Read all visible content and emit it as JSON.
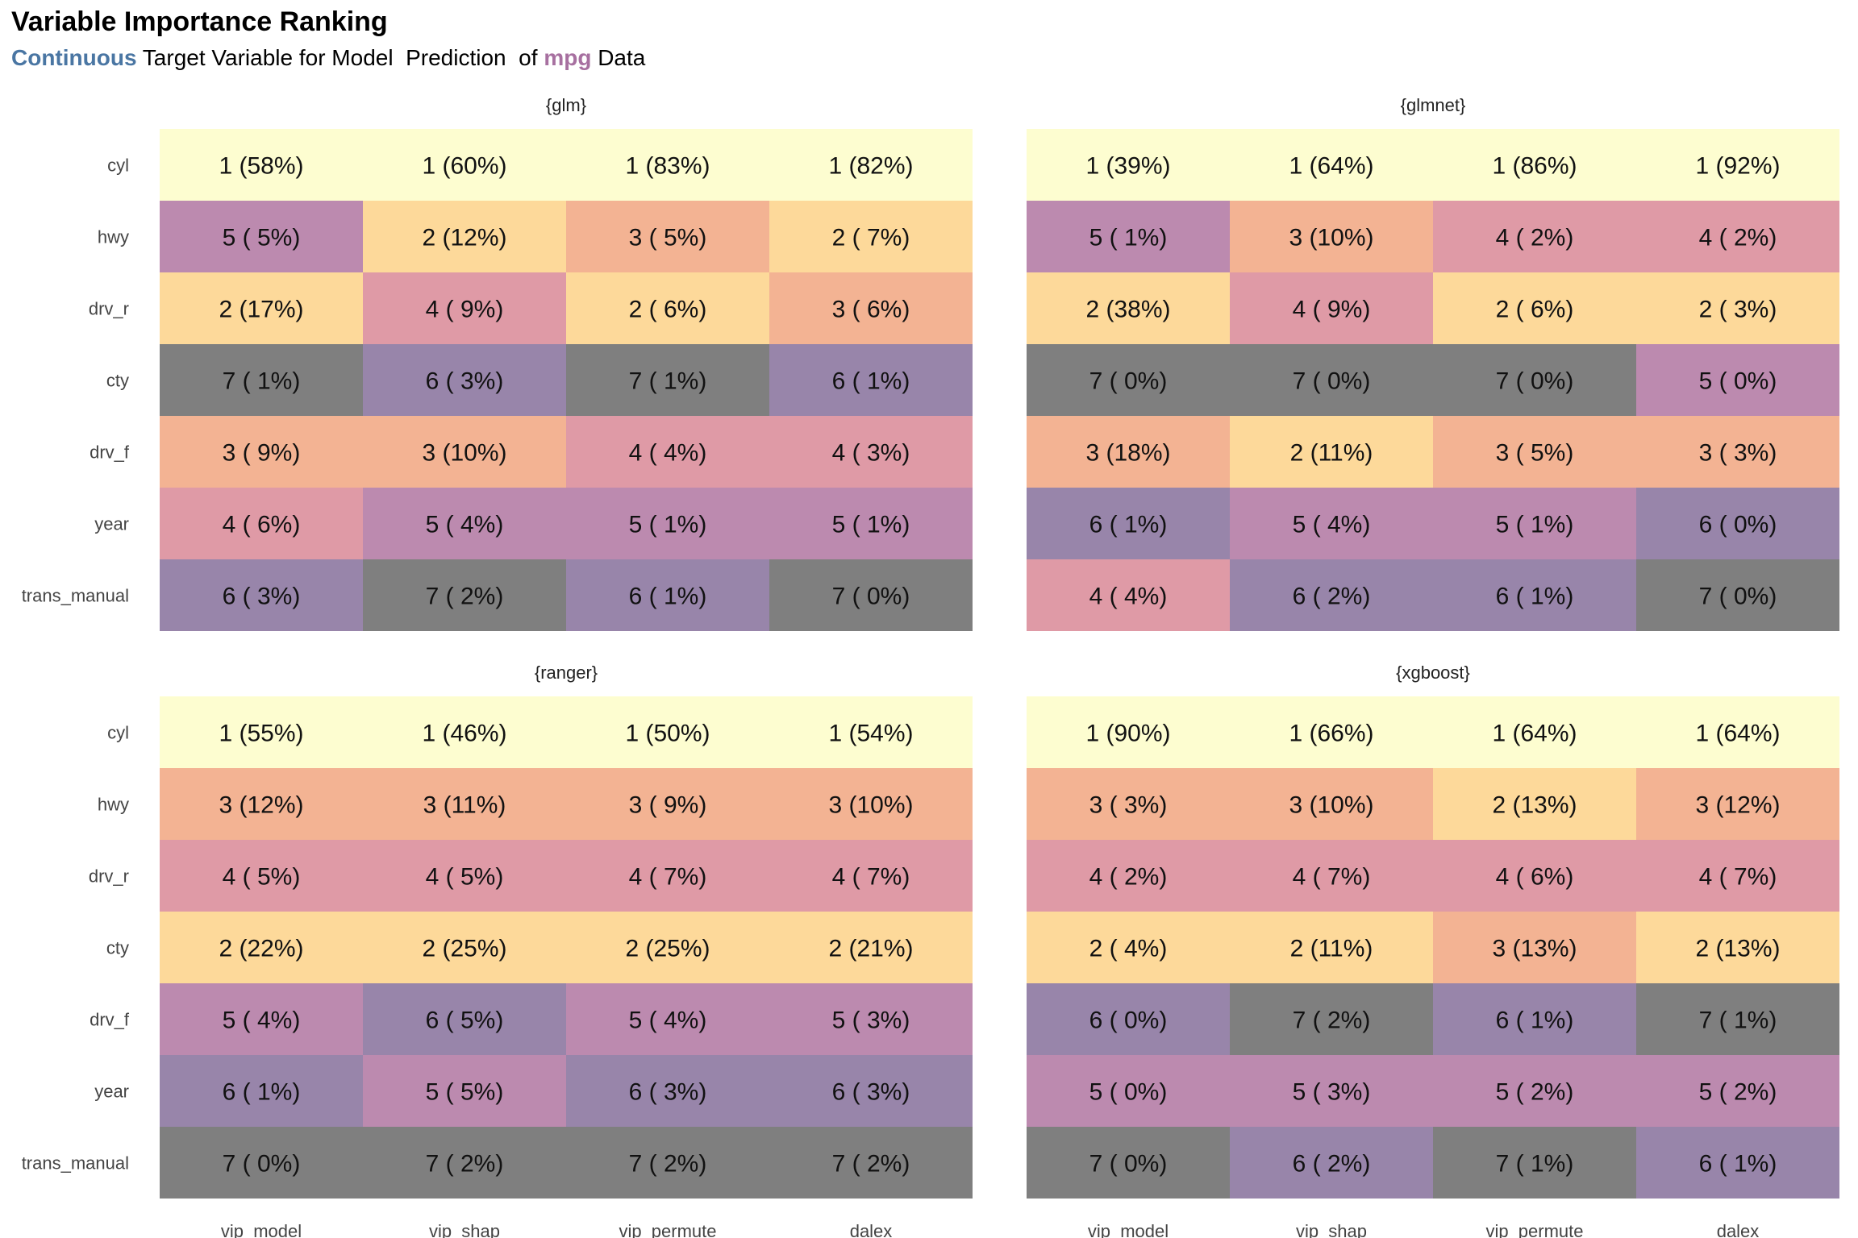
{
  "title": "Variable Importance Ranking",
  "subtitle": {
    "word1": "Continuous",
    "part2": " Target Variable for Model  Prediction  of ",
    "word2": "mpg",
    "part3": " Data",
    "word1_color": "#4a76a3",
    "word2_color": "#a770a0"
  },
  "chart_data": {
    "type": "heatmap",
    "x_labels": [
      "vip_model",
      "vip_shap",
      "vip_permute",
      "dalex"
    ],
    "y_labels": [
      "cyl",
      "hwy",
      "drv_r",
      "cty",
      "drv_f",
      "year",
      "trans_manual"
    ],
    "rank_colors": {
      "1": "#fdfdd0",
      "2": "#fdd99a",
      "3": "#f3b393",
      "4": "#df9aa6",
      "5": "#bc8aaf",
      "6": "#9885aa",
      "7": "#7f7f7f"
    },
    "panels": [
      {
        "name": "{glm}",
        "cells": [
          [
            "1 (58%)",
            "1 (60%)",
            "1 (83%)",
            "1 (82%)"
          ],
          [
            "5 ( 5%)",
            "2 (12%)",
            "3 ( 5%)",
            "2 ( 7%)"
          ],
          [
            "2 (17%)",
            "4 ( 9%)",
            "2 ( 6%)",
            "3 ( 6%)"
          ],
          [
            "7 ( 1%)",
            "6 ( 3%)",
            "7 ( 1%)",
            "6 ( 1%)"
          ],
          [
            "3 ( 9%)",
            "3 (10%)",
            "4 ( 4%)",
            "4 ( 3%)"
          ],
          [
            "4 ( 6%)",
            "5 ( 4%)",
            "5 ( 1%)",
            "5 ( 1%)"
          ],
          [
            "6 ( 3%)",
            "7 ( 2%)",
            "6 ( 1%)",
            "7 ( 0%)"
          ]
        ]
      },
      {
        "name": "{glmnet}",
        "cells": [
          [
            "1 (39%)",
            "1 (64%)",
            "1 (86%)",
            "1 (92%)"
          ],
          [
            "5 ( 1%)",
            "3 (10%)",
            "4 ( 2%)",
            "4 ( 2%)"
          ],
          [
            "2 (38%)",
            "4 ( 9%)",
            "2 ( 6%)",
            "2 ( 3%)"
          ],
          [
            "7 ( 0%)",
            "7 ( 0%)",
            "7 ( 0%)",
            "5 ( 0%)"
          ],
          [
            "3 (18%)",
            "2 (11%)",
            "3 ( 5%)",
            "3 ( 3%)"
          ],
          [
            "6 ( 1%)",
            "5 ( 4%)",
            "5 ( 1%)",
            "6 ( 0%)"
          ],
          [
            "4 ( 4%)",
            "6 ( 2%)",
            "6 ( 1%)",
            "7 ( 0%)"
          ]
        ]
      },
      {
        "name": "{ranger}",
        "cells": [
          [
            "1 (55%)",
            "1 (46%)",
            "1 (50%)",
            "1 (54%)"
          ],
          [
            "3 (12%)",
            "3 (11%)",
            "3 ( 9%)",
            "3 (10%)"
          ],
          [
            "4 ( 5%)",
            "4 ( 5%)",
            "4 ( 7%)",
            "4 ( 7%)"
          ],
          [
            "2 (22%)",
            "2 (25%)",
            "2 (25%)",
            "2 (21%)"
          ],
          [
            "5 ( 4%)",
            "6 ( 5%)",
            "5 ( 4%)",
            "5 ( 3%)"
          ],
          [
            "6 ( 1%)",
            "5 ( 5%)",
            "6 ( 3%)",
            "6 ( 3%)"
          ],
          [
            "7 ( 0%)",
            "7 ( 2%)",
            "7 ( 2%)",
            "7 ( 2%)"
          ]
        ]
      },
      {
        "name": "{xgboost}",
        "cells": [
          [
            "1 (90%)",
            "1 (66%)",
            "1 (64%)",
            "1 (64%)"
          ],
          [
            "3 ( 3%)",
            "3 (10%)",
            "2 (13%)",
            "3 (12%)"
          ],
          [
            "4 ( 2%)",
            "4 ( 7%)",
            "4 ( 6%)",
            "4 ( 7%)"
          ],
          [
            "2 ( 4%)",
            "2 (11%)",
            "3 (13%)",
            "2 (13%)"
          ],
          [
            "6 ( 0%)",
            "7 ( 2%)",
            "6 ( 1%)",
            "7 ( 1%)"
          ],
          [
            "5 ( 0%)",
            "5 ( 3%)",
            "5 ( 2%)",
            "5 ( 2%)"
          ],
          [
            "7 ( 0%)",
            "6 ( 2%)",
            "7 ( 1%)",
            "6 ( 1%)"
          ]
        ]
      }
    ]
  }
}
